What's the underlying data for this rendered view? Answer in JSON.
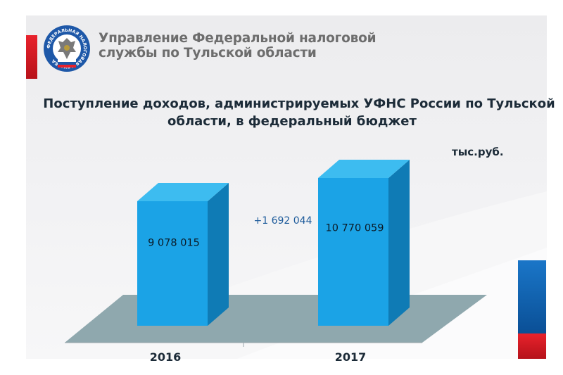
{
  "header": {
    "org_line1": "Управление Федеральной налоговой",
    "org_line2": "службы по Тульской области",
    "emblem_text": "ФЕДЕРАЛЬНАЯ НАЛОГОВАЯ СЛУЖБА"
  },
  "title_line1": "Поступление доходов, администрируемых УФНС России по Тульской",
  "title_line2": "области, в федеральный бюджет",
  "unit": "тыс.руб.",
  "colors": {
    "bar": "#1ba3e6",
    "bar_top": "#3dbcf0",
    "bar_side": "#0f7bb5",
    "floor": "#8fa8ae",
    "accent_red": "#e8222c",
    "accent_blue": "#1a76c8"
  },
  "chart_data": {
    "type": "bar",
    "categories": [
      "2016",
      "2017"
    ],
    "values": [
      9078015,
      10770059
    ],
    "value_labels": [
      "9 078 015",
      "10 770 059"
    ],
    "annotation": "+1 692 044",
    "ylim": [
      0,
      12000000
    ]
  }
}
